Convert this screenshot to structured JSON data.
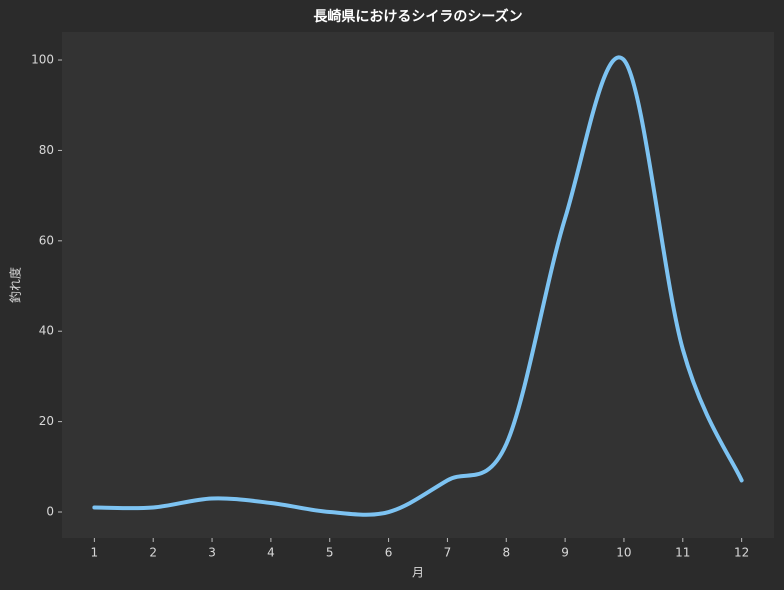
{
  "chart_data": {
    "type": "line",
    "title": "長崎県におけるシイラのシーズン",
    "x_label": "月",
    "y_label": "釣れ度",
    "x": [
      1,
      2,
      3,
      4,
      5,
      6,
      7,
      8,
      9,
      10,
      11,
      12
    ],
    "series": [
      {
        "color": "#7dc3f2",
        "values": [
          1,
          1,
          3,
          2,
          0,
          0,
          7,
          15,
          65,
          100,
          36,
          7
        ]
      }
    ],
    "xlim": [
      0.45,
      12.55
    ],
    "ylim": [
      -5.75,
      106.2
    ],
    "xticks": [
      1,
      2,
      3,
      4,
      5,
      6,
      7,
      8,
      9,
      10,
      11,
      12
    ],
    "yticks": [
      0,
      20,
      40,
      60,
      80,
      100
    ],
    "smooth": true,
    "grid": false
  }
}
